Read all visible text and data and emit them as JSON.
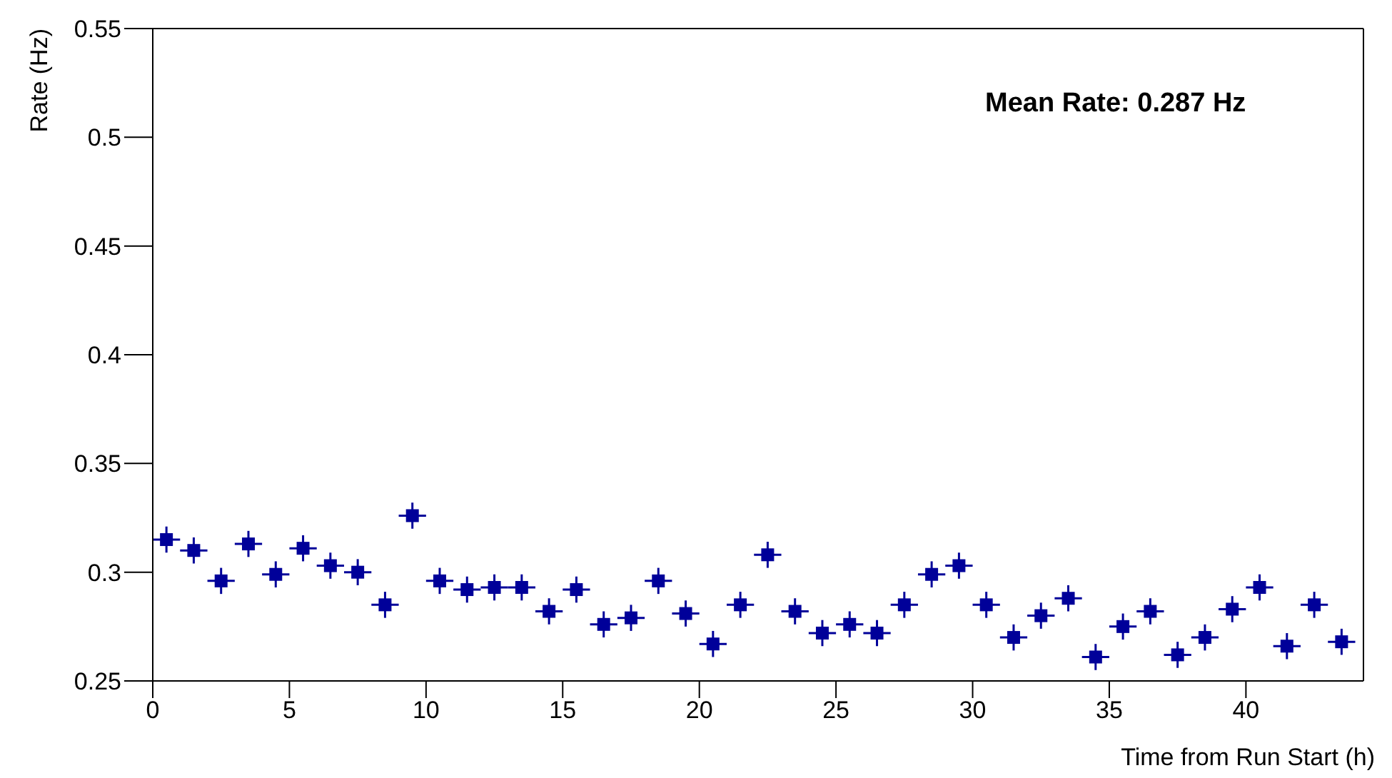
{
  "chart_data": {
    "type": "scatter",
    "xlabel": "Time from Run Start (h)",
    "ylabel": "Rate (Hz)",
    "annotations": [
      "Mean Rate: 0.287 Hz"
    ],
    "x": [
      0.5,
      1.5,
      2.5,
      3.5,
      4.5,
      5.5,
      6.5,
      7.5,
      8.5,
      9.5,
      10.5,
      11.5,
      12.5,
      13.5,
      14.5,
      15.5,
      16.5,
      17.5,
      18.5,
      19.5,
      20.5,
      21.5,
      22.5,
      23.5,
      24.5,
      25.5,
      26.5,
      27.5,
      28.5,
      29.5,
      30.5,
      31.5,
      32.5,
      33.5,
      34.5,
      35.5,
      36.5,
      37.5,
      38.5,
      39.5,
      40.5,
      41.5,
      42.5,
      43.5
    ],
    "series": [
      {
        "color": "#000099",
        "values": [
          0.315,
          0.31,
          0.296,
          0.313,
          0.299,
          0.311,
          0.303,
          0.3,
          0.285,
          0.326,
          0.296,
          0.292,
          0.293,
          0.293,
          0.282,
          0.292,
          0.276,
          0.279,
          0.296,
          0.281,
          0.267,
          0.285,
          0.308,
          0.282,
          0.272,
          0.276,
          0.272,
          0.285,
          0.299,
          0.303,
          0.285,
          0.27,
          0.28,
          0.288,
          0.261,
          0.275,
          0.282,
          0.262,
          0.27,
          0.283,
          0.293,
          0.266,
          0.285,
          0.268
        ],
        "errors": [
          0.006,
          0.006,
          0.006,
          0.006,
          0.006,
          0.006,
          0.006,
          0.006,
          0.006,
          0.006,
          0.006,
          0.006,
          0.006,
          0.006,
          0.006,
          0.006,
          0.006,
          0.006,
          0.006,
          0.006,
          0.006,
          0.006,
          0.006,
          0.006,
          0.006,
          0.006,
          0.006,
          0.006,
          0.006,
          0.006,
          0.006,
          0.006,
          0.006,
          0.006,
          0.006,
          0.006,
          0.006,
          0.006,
          0.006,
          0.006,
          0.006,
          0.006,
          0.006,
          0.006
        ],
        "xerrors": [
          0.5,
          0.5,
          0.5,
          0.5,
          0.5,
          0.5,
          0.5,
          0.5,
          0.5,
          0.5,
          0.5,
          0.5,
          0.5,
          0.5,
          0.5,
          0.5,
          0.5,
          0.5,
          0.5,
          0.5,
          0.5,
          0.5,
          0.5,
          0.5,
          0.5,
          0.5,
          0.5,
          0.5,
          0.5,
          0.5,
          0.5,
          0.5,
          0.5,
          0.5,
          0.5,
          0.5,
          0.5,
          0.5,
          0.5,
          0.5,
          0.5,
          0.5,
          0.5,
          0.5
        ]
      }
    ],
    "xlim": [
      0,
      44.3
    ],
    "xticks": [
      0,
      5,
      10,
      15,
      20,
      25,
      30,
      35,
      40
    ],
    "ylim": [
      0.25,
      0.55
    ],
    "yticks": [
      0.25,
      0.3,
      0.35,
      0.4,
      0.45,
      0.5,
      0.55
    ],
    "marker": "square"
  }
}
